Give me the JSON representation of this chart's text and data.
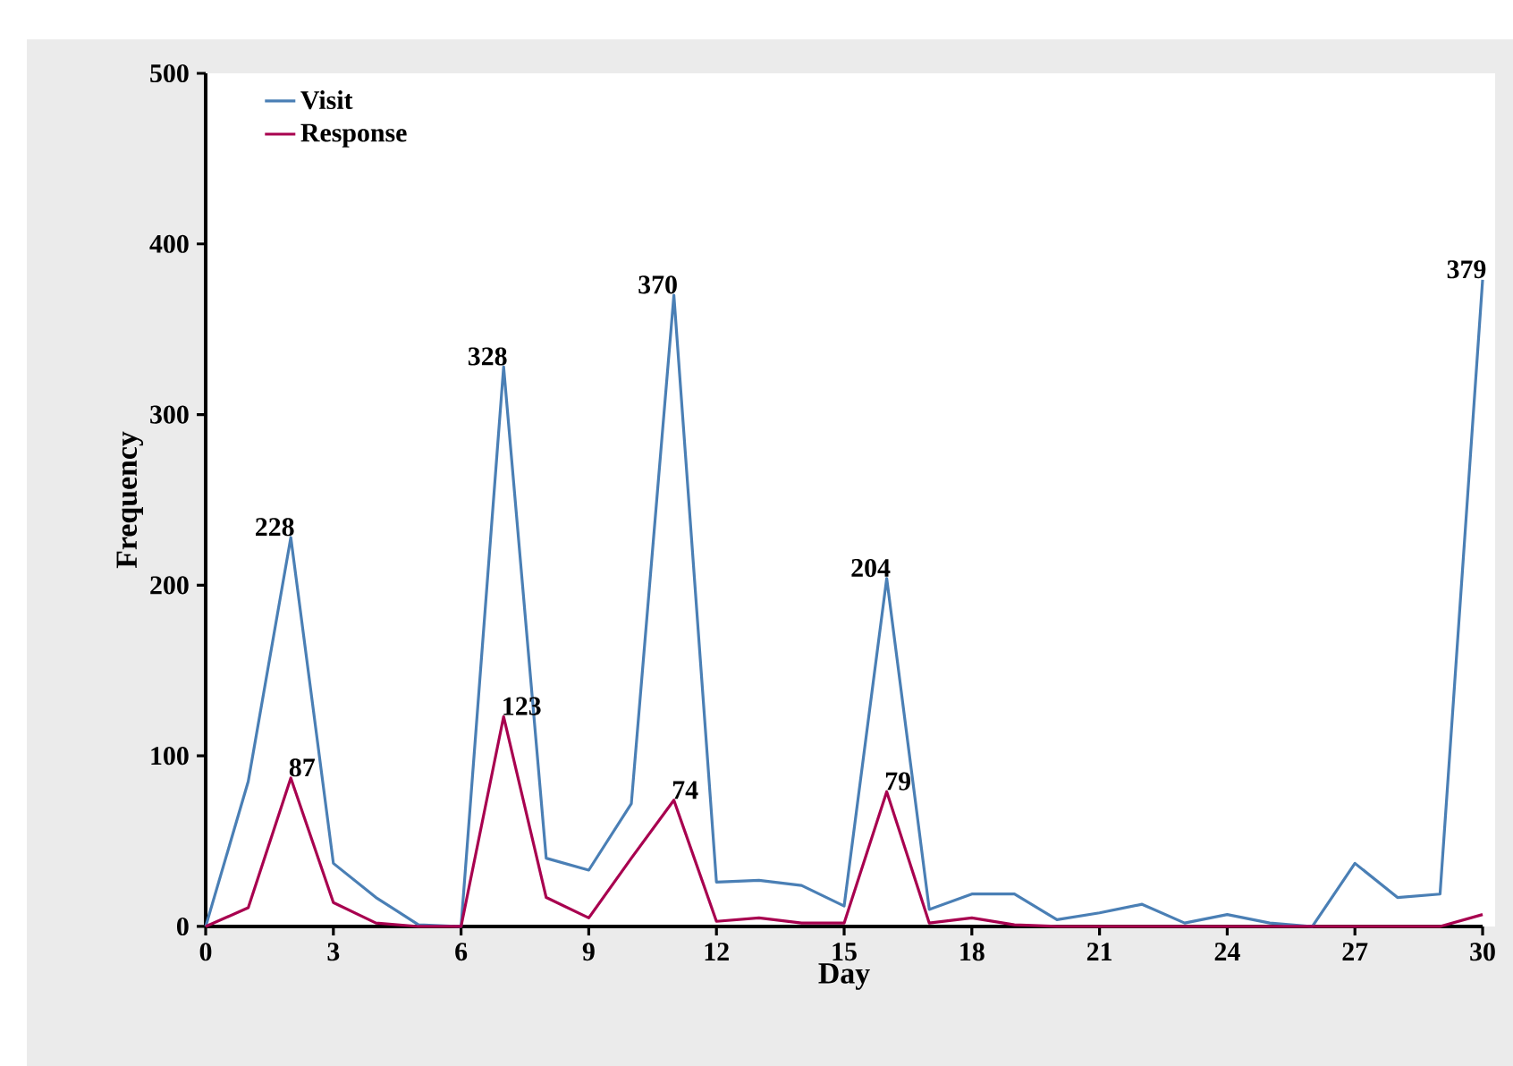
{
  "chart_data": {
    "type": "line",
    "xlabel": "Day",
    "ylabel": "Frequency",
    "x": [
      0,
      1,
      2,
      3,
      4,
      5,
      6,
      7,
      8,
      9,
      10,
      11,
      12,
      13,
      14,
      15,
      16,
      17,
      18,
      19,
      20,
      21,
      22,
      23,
      24,
      25,
      26,
      27,
      28,
      29,
      30
    ],
    "series": [
      {
        "name": "Visit",
        "color": "#4a7fb5",
        "values": [
          0,
          85,
          228,
          37,
          17,
          1,
          0,
          328,
          40,
          33,
          72,
          370,
          26,
          27,
          24,
          12,
          204,
          10,
          19,
          19,
          4,
          8,
          13,
          2,
          7,
          2,
          0,
          37,
          17,
          19,
          379
        ],
        "value_labels": [
          null,
          null,
          "228",
          null,
          null,
          null,
          null,
          "328",
          null,
          null,
          null,
          "370",
          null,
          null,
          null,
          null,
          "204",
          null,
          null,
          null,
          null,
          null,
          null,
          null,
          null,
          null,
          null,
          null,
          null,
          null,
          "379"
        ]
      },
      {
        "name": "Response",
        "color": "#a8004f",
        "values": [
          0,
          11,
          87,
          14,
          2,
          0,
          0,
          123,
          17,
          5,
          40,
          74,
          3,
          5,
          2,
          2,
          79,
          2,
          5,
          1,
          0,
          0,
          0,
          0,
          0,
          0,
          0,
          0,
          0,
          0,
          7
        ],
        "value_labels": [
          null,
          null,
          "87",
          null,
          null,
          null,
          null,
          "123",
          null,
          null,
          null,
          "74",
          null,
          null,
          null,
          null,
          "79",
          null,
          null,
          null,
          null,
          null,
          null,
          null,
          null,
          null,
          null,
          null,
          null,
          null,
          null
        ]
      }
    ],
    "xlim": [
      0,
      30
    ],
    "xticks": [
      0,
      3,
      6,
      9,
      12,
      15,
      18,
      21,
      24,
      27,
      30
    ],
    "ylim": [
      0,
      500
    ],
    "yticks": [
      0,
      100,
      200,
      300,
      400,
      500
    ],
    "legend": "top left",
    "marker": "none",
    "line_style": "solid"
  }
}
